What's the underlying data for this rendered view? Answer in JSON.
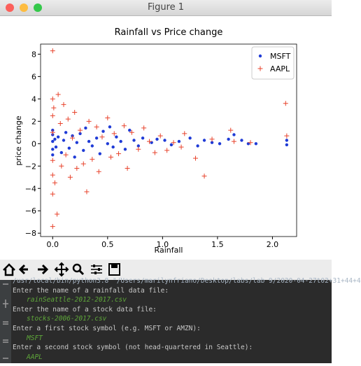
{
  "window": {
    "title": "Figure 1"
  },
  "chart_data": {
    "type": "scatter",
    "title": "Rainfall vs Price change",
    "xlabel": "Rainfall",
    "ylabel": "price change",
    "xlim": [
      -0.11,
      2.22
    ],
    "ylim": [
      -8.3,
      8.9
    ],
    "xticks": [
      {
        "value": 0,
        "label": "0.0"
      },
      0.5,
      {
        "value": 1,
        "label": "1.0"
      },
      1.5,
      {
        "value": 2,
        "label": "2.0"
      }
    ],
    "yticks": [
      {
        "value": -8,
        "label": "−8"
      },
      {
        "value": -6,
        "label": "−6"
      },
      {
        "value": -4,
        "label": "−4"
      },
      {
        "value": -2,
        "label": "−2"
      },
      0,
      2,
      4,
      6,
      8
    ],
    "legend": "upper right",
    "series": [
      {
        "name": "MSFT",
        "color": "#1f3bd6",
        "marker": "o",
        "x": [
          0,
          0,
          0,
          0,
          0,
          0.02,
          0.03,
          0.05,
          0.08,
          0.1,
          0.12,
          0.15,
          0.18,
          0.2,
          0.22,
          0.25,
          0.28,
          0.3,
          0.33,
          0.36,
          0.4,
          0.43,
          0.46,
          0.5,
          0.52,
          0.55,
          0.58,
          0.62,
          0.66,
          0.7,
          0.74,
          0.78,
          0.82,
          0.9,
          0.95,
          1.02,
          1.08,
          1.15,
          1.25,
          1.32,
          1.38,
          1.45,
          1.52,
          1.6,
          1.65,
          1.72,
          1.78,
          1.85,
          2.13,
          2.13
        ],
        "values": [
          0.2,
          -0.5,
          0.8,
          -1.0,
          1.2,
          0.4,
          -0.3,
          0.6,
          -0.8,
          0.3,
          1.0,
          -0.4,
          0.7,
          -1.2,
          0.1,
          0.9,
          -0.6,
          1.4,
          0.2,
          -0.2,
          0.5,
          -0.9,
          1.1,
          0.0,
          1.5,
          -0.3,
          0.6,
          0.2,
          -0.5,
          1.2,
          0.3,
          -0.2,
          0.5,
          0.1,
          0.4,
          0.3,
          -0.1,
          0.2,
          0.5,
          -0.2,
          0.3,
          0.1,
          0.0,
          0.4,
          0.8,
          0.3,
          0.0,
          0.0,
          0.3,
          -0.1
        ]
      },
      {
        "name": "AAPL",
        "color": "#e8432c",
        "marker": "+",
        "x": [
          0,
          0,
          0,
          0,
          0,
          0,
          0,
          0,
          0.01,
          0.02,
          0.04,
          0.05,
          0.07,
          0.08,
          0.1,
          0.12,
          0.14,
          0.16,
          0.18,
          0.2,
          0.22,
          0.25,
          0.28,
          0.31,
          0.33,
          0.36,
          0.4,
          0.42,
          0.45,
          0.5,
          0.53,
          0.56,
          0.6,
          0.65,
          0.68,
          0.72,
          0.78,
          0.83,
          0.88,
          0.93,
          0.98,
          1.04,
          1.1,
          1.17,
          1.2,
          1.3,
          1.38,
          1.45,
          1.62,
          1.65,
          1.8,
          2.12,
          2.13
        ],
        "values": [
          8.3,
          -7.4,
          4.0,
          -4.5,
          2.5,
          -2.8,
          1.0,
          -1.5,
          3.2,
          -3.5,
          -6.3,
          4.4,
          1.8,
          -2.0,
          3.5,
          -1.0,
          2.2,
          -3.0,
          0.5,
          2.8,
          -2.2,
          1.2,
          -1.8,
          -4.3,
          2.0,
          -1.4,
          1.5,
          -2.5,
          0.6,
          2.3,
          -1.2,
          0.9,
          -0.9,
          1.6,
          -2.2,
          1.0,
          -0.5,
          1.4,
          0.2,
          -0.8,
          0.7,
          -0.6,
          0.1,
          -0.3,
          0.9,
          -1.3,
          -2.9,
          0.4,
          1.2,
          0.2,
          0.1,
          3.6,
          0.7
        ]
      }
    ]
  },
  "terminal": {
    "lines": [
      {
        "text": "/usr/local/bin/python3.8 \"/Users/marilynfriano/Desktop/labs/lab 9/2020-04-27t02+31+44+4",
        "kind": "command"
      },
      {
        "text": "Enter the name of a rainfall data file:",
        "kind": "prompt"
      },
      {
        "text": "rainSeattle-2012-2017.csv",
        "kind": "input"
      },
      {
        "text": "Enter the name of a stock data file:",
        "kind": "prompt"
      },
      {
        "text": "stocks-2006-2017.csv",
        "kind": "input"
      },
      {
        "text": "Enter a first stock symbol (e.g. MSFT or AMZN):",
        "kind": "prompt"
      },
      {
        "text": "MSFT",
        "kind": "input"
      },
      {
        "text": "Enter a second stock symbol (not head-quartered in Seattle):",
        "kind": "prompt"
      },
      {
        "text": "AAPL",
        "kind": "input"
      }
    ]
  }
}
